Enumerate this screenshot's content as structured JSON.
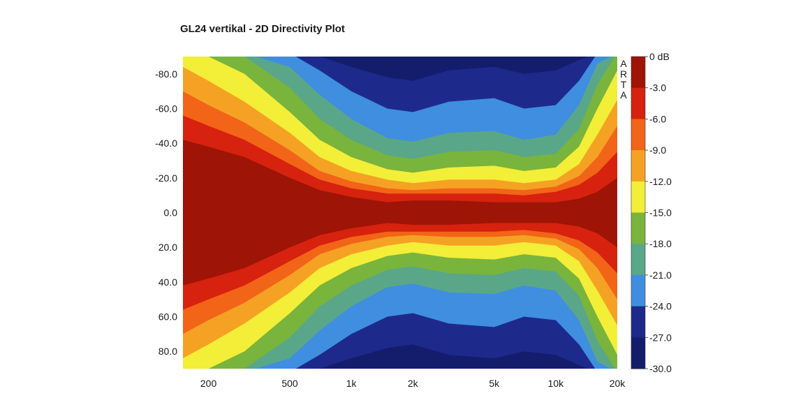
{
  "chart_data": {
    "type": "heatmap",
    "title": "GL24 vertikal - 2D Directivity Plot",
    "x_scale": "log",
    "x_range_hz": [
      150,
      20000
    ],
    "x_ticks": [
      {
        "value": 200,
        "label": "200"
      },
      {
        "value": 500,
        "label": "500"
      },
      {
        "value": 1000,
        "label": "1k"
      },
      {
        "value": 2000,
        "label": "2k"
      },
      {
        "value": 5000,
        "label": "5k"
      },
      {
        "value": 10000,
        "label": "10k"
      },
      {
        "value": 20000,
        "label": "20k"
      }
    ],
    "y_range_deg": [
      -90,
      90
    ],
    "y_ticks": [
      {
        "value": -80,
        "label": "-80.0"
      },
      {
        "value": -60,
        "label": "-60.0"
      },
      {
        "value": -40,
        "label": "-40.0"
      },
      {
        "value": -20,
        "label": "-20.0"
      },
      {
        "value": 0,
        "label": "0.0"
      },
      {
        "value": 20,
        "label": "20.0"
      },
      {
        "value": 40,
        "label": "40.0"
      },
      {
        "value": 60,
        "label": "60.0"
      },
      {
        "value": 80,
        "label": "80.0"
      }
    ],
    "colorbar": {
      "labels": [
        "0 dB",
        "-3.0",
        "-6.0",
        "-9.0",
        "-12.0",
        "-15.0",
        "-18.0",
        "-21.0",
        "-24.0",
        "-27.0",
        "-30.0"
      ],
      "colors": [
        "#9e1406",
        "#d6220e",
        "#f26417",
        "#f5a224",
        "#f3ee37",
        "#79b43d",
        "#59a788",
        "#3f8ee0",
        "#1d2a8c",
        "#141d6c"
      ]
    },
    "contours": [
      {
        "level_db": -3,
        "freq_hz": [
          150,
          200,
          300,
          500,
          700,
          1000,
          1500,
          2000,
          3000,
          5000,
          7000,
          10000,
          13000,
          16000,
          20000
        ],
        "half_angle_deg": [
          42,
          38,
          32,
          20,
          13,
          9,
          6,
          7,
          7,
          6,
          6,
          6,
          8,
          12,
          20
        ]
      },
      {
        "level_db": -6,
        "freq_hz": [
          150,
          200,
          300,
          500,
          700,
          1000,
          1500,
          2000,
          3000,
          5000,
          7000,
          10000,
          13000,
          16000,
          20000
        ],
        "half_angle_deg": [
          56,
          50,
          42,
          28,
          19,
          14,
          11,
          11,
          11,
          11,
          10,
          12,
          16,
          23,
          35
        ]
      },
      {
        "level_db": -9,
        "freq_hz": [
          150,
          200,
          300,
          500,
          700,
          1000,
          1500,
          2000,
          3000,
          5000,
          7000,
          10000,
          13000,
          16000,
          20000
        ],
        "half_angle_deg": [
          70,
          62,
          52,
          36,
          24,
          18,
          14,
          13,
          14,
          14,
          13,
          15,
          21,
          32,
          50
        ]
      },
      {
        "level_db": -12,
        "freq_hz": [
          150,
          200,
          300,
          500,
          700,
          1000,
          1500,
          2000,
          3000,
          5000,
          7000,
          10000,
          13000,
          16000,
          20000
        ],
        "half_angle_deg": [
          84,
          76,
          64,
          46,
          32,
          24,
          19,
          17,
          19,
          19,
          17,
          19,
          28,
          45,
          65
        ]
      },
      {
        "level_db": -15,
        "freq_hz": [
          150,
          200,
          300,
          500,
          700,
          1000,
          1500,
          2000,
          3000,
          5000,
          7000,
          10000,
          13000,
          16000,
          20000
        ],
        "half_angle_deg": [
          92,
          90,
          80,
          58,
          42,
          32,
          25,
          23,
          26,
          27,
          24,
          26,
          38,
          60,
          82
        ]
      },
      {
        "level_db": -18,
        "freq_hz": [
          150,
          200,
          300,
          500,
          700,
          1000,
          1500,
          2000,
          3000,
          5000,
          7000,
          10000,
          13000,
          16000,
          20000
        ],
        "half_angle_deg": [
          92,
          92,
          90,
          72,
          54,
          42,
          33,
          31,
          35,
          36,
          32,
          34,
          48,
          74,
          92
        ]
      },
      {
        "level_db": -21,
        "freq_hz": [
          150,
          200,
          300,
          500,
          700,
          1000,
          1500,
          2000,
          3000,
          5000,
          7000,
          10000,
          13000,
          16000,
          20000
        ],
        "half_angle_deg": [
          92,
          92,
          92,
          84,
          68,
          54,
          43,
          41,
          46,
          47,
          42,
          45,
          62,
          86,
          92
        ]
      },
      {
        "level_db": -24,
        "freq_hz": [
          150,
          200,
          300,
          500,
          700,
          1000,
          1500,
          2000,
          3000,
          5000,
          7000,
          10000,
          13000,
          16000,
          20000
        ],
        "half_angle_deg": [
          92,
          92,
          92,
          92,
          82,
          70,
          60,
          58,
          64,
          66,
          60,
          62,
          76,
          92,
          92
        ]
      },
      {
        "level_db": -27,
        "freq_hz": [
          150,
          200,
          300,
          500,
          700,
          1000,
          1500,
          2000,
          3000,
          5000,
          7000,
          10000,
          13000,
          16000,
          20000
        ],
        "half_angle_deg": [
          92,
          92,
          92,
          92,
          90,
          84,
          78,
          76,
          82,
          84,
          80,
          82,
          88,
          92,
          92
        ]
      }
    ]
  },
  "brand_text": [
    "A",
    "R",
    "T",
    "A"
  ]
}
